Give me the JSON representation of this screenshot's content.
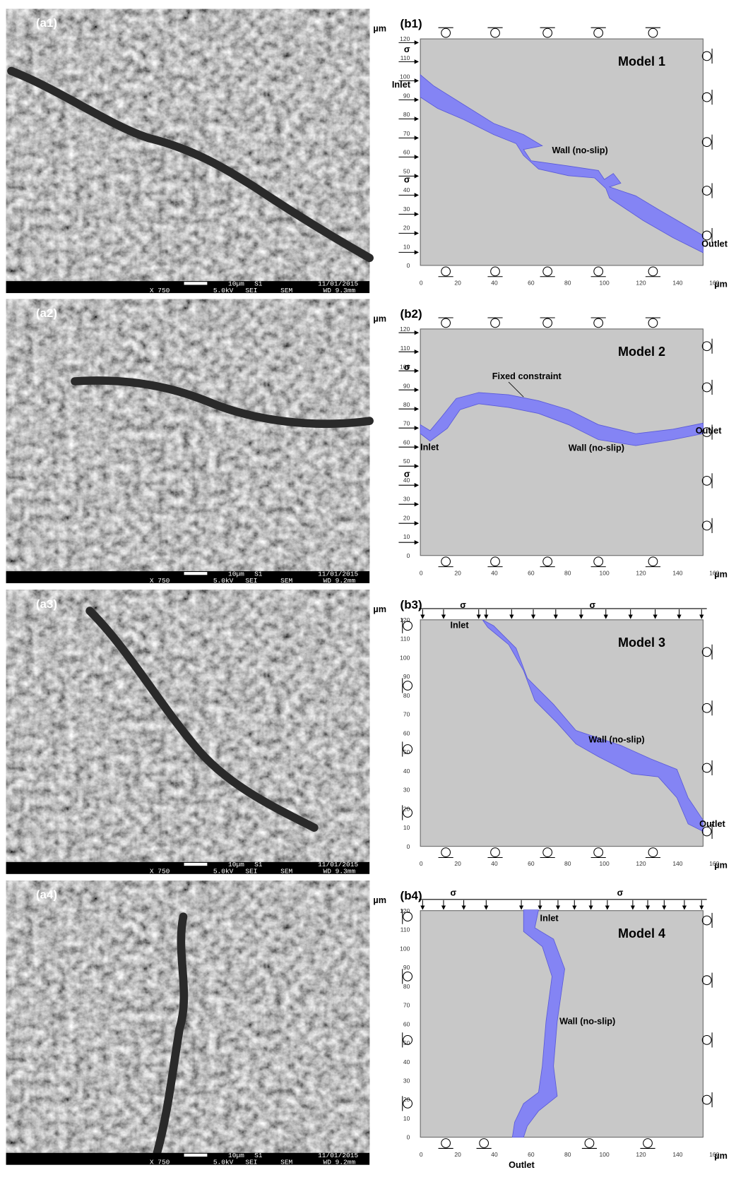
{
  "panels": [
    {
      "sem": {
        "label": "(a1)",
        "magnification": "X 750",
        "voltage": "5.0kV",
        "detector": "SEI",
        "scale": "10µm",
        "sample": "S1",
        "mode": "SEM",
        "date": "11/01/2015",
        "wd": "WD 9.3mm"
      },
      "model": {
        "label": "(b1)",
        "title": "Model 1",
        "stress": [
          "σ",
          "σ"
        ],
        "inlet": "Inlet",
        "outlet": "Outlet",
        "wall": "Wall (no-slip)"
      }
    },
    {
      "sem": {
        "label": "(a2)",
        "magnification": "X 750",
        "voltage": "5.0kV",
        "detector": "SEI",
        "scale": "10µm",
        "sample": "S1",
        "mode": "SEM",
        "date": "11/01/2015",
        "wd": "WD 9.2mm"
      },
      "model": {
        "label": "(b2)",
        "title": "Model 2",
        "stress": [
          "σ",
          "σ"
        ],
        "inlet": "Inlet",
        "outlet": "Outlet",
        "wall": "Wall (no-slip)",
        "constraint": "Fixed constraint"
      }
    },
    {
      "sem": {
        "label": "(a3)",
        "magnification": "X 750",
        "voltage": "5.0kV",
        "detector": "SEI",
        "scale": "10µm",
        "sample": "S1",
        "mode": "SEM",
        "date": "11/01/2015",
        "wd": "WD 9.3mm"
      },
      "model": {
        "label": "(b3)",
        "title": "Model 3",
        "stress": [
          "σ",
          "σ"
        ],
        "inlet": "Inlet",
        "outlet": "Outlet",
        "wall": "Wall (no-slip)"
      }
    },
    {
      "sem": {
        "label": "(a4)",
        "magnification": "X 750",
        "voltage": "5.0kV",
        "detector": "SEI",
        "scale": "10µm",
        "sample": "S1",
        "mode": "SEM",
        "date": "11/01/2015",
        "wd": "WD 9.2mm"
      },
      "model": {
        "label": "(b4)",
        "title": "Model 4",
        "stress": [
          "σ",
          "σ"
        ],
        "inlet": "Inlet",
        "outlet": "Outlet",
        "wall": "Wall (no-slip)"
      }
    }
  ],
  "axes": {
    "unit": "µm",
    "xticks": [
      0,
      20,
      40,
      60,
      80,
      100,
      120,
      140,
      160
    ],
    "yticks": [
      0,
      10,
      20,
      30,
      40,
      50,
      60,
      70,
      80,
      90,
      100,
      110,
      120
    ]
  }
}
